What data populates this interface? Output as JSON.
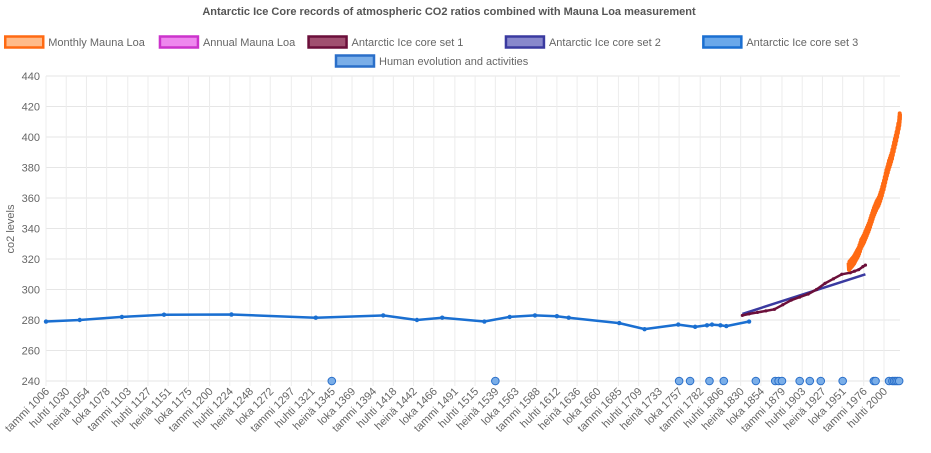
{
  "chart_data": {
    "type": "line",
    "title": "Antarctic Ice Core records of atmospheric CO2 ratios combined with Mauna Loa measurement",
    "ylabel": "co2 levels",
    "xlabel": "",
    "ylim": [
      240,
      440
    ],
    "yticks": [
      240,
      260,
      280,
      300,
      320,
      340,
      360,
      380,
      400,
      420,
      440
    ],
    "xlim": [
      1006,
      2019
    ],
    "grid": true,
    "legend_position": "top",
    "x_tick_years": [
      1006,
      1030,
      1054,
      1078,
      1103,
      1127,
      1151,
      1175,
      1200,
      1224,
      1248,
      1272,
      1297,
      1321,
      1345,
      1369,
      1394,
      1418,
      1442,
      1466,
      1491,
      1515,
      1539,
      1563,
      1588,
      1612,
      1636,
      1660,
      1685,
      1709,
      1733,
      1757,
      1782,
      1806,
      1830,
      1854,
      1879,
      1903,
      1927,
      1951,
      1976,
      2000
    ],
    "x_tick_labels": [
      "tammi 1006",
      "huhti 1030",
      "heinä 1054",
      "loka 1078",
      "tammi 1103",
      "huhti 1127",
      "heinä 1151",
      "loka 1175",
      "tammi 1200",
      "huhti 1224",
      "heinä 1248",
      "loka 1272",
      "tammi 1297",
      "huhti 1321",
      "heinä 1345",
      "loka 1369",
      "tammi 1394",
      "huhti 1418",
      "heinä 1442",
      "loka 1466",
      "tammi 1491",
      "huhti 1515",
      "heinä 1539",
      "loka 1563",
      "tammi 1588",
      "huhti 1612",
      "heinä 1636",
      "loka 1660",
      "tammi 1685",
      "huhti 1709",
      "heinä 1733",
      "loka 1757",
      "tammi 1782",
      "huhti 1806",
      "heinä 1830",
      "loka 1854",
      "tammi 1879",
      "huhti 1903",
      "heinä 1927",
      "loka 1951",
      "tammi 1976",
      "huhti 2000"
    ],
    "series": [
      {
        "name": "Monthly Mauna Loa",
        "color": "#ff6a13",
        "fill": "#ffbb8a",
        "style": "thick-line",
        "x": [
          1958,
          1961,
          1964,
          1967,
          1970,
          1973,
          1976,
          1979,
          1982,
          1985,
          1988,
          1991,
          1994,
          1997,
          2000,
          2003,
          2006,
          2009,
          2012,
          2015,
          2018,
          2019
        ],
        "y": [
          315,
          317,
          319,
          322,
          325,
          330,
          333,
          337,
          341,
          346,
          351,
          355,
          358,
          363,
          369,
          376,
          382,
          387,
          394,
          401,
          409,
          415
        ]
      },
      {
        "name": "Annual Mauna Loa",
        "color": "#cc33cc",
        "fill": "#ee88ee",
        "style": "line",
        "x": [
          1959,
          1970,
          1980,
          1990,
          2000,
          2010,
          2019
        ],
        "y": [
          316,
          325,
          339,
          354,
          369,
          389,
          411
        ]
      },
      {
        "name": "Antarctic Ice core set 1",
        "color": "#6b0f3a",
        "fill": "#a05070",
        "style": "line",
        "x": [
          1832,
          1840,
          1850,
          1860,
          1870,
          1880,
          1890,
          1900,
          1910,
          1920,
          1930,
          1940,
          1950,
          1960,
          1965,
          1970,
          1975,
          1978
        ],
        "y": [
          283,
          284,
          285,
          286,
          287,
          290,
          293,
          295,
          297,
          300,
          304,
          307,
          310,
          311,
          312,
          313,
          315,
          316
        ]
      },
      {
        "name": "Antarctic Ice core set 2",
        "color": "#3a3aa0",
        "fill": "#8888cc",
        "style": "line",
        "x": [
          1832,
          1978
        ],
        "y": [
          284,
          310
        ]
      },
      {
        "name": "Antarctic Ice core set 3",
        "color": "#1a6fd1",
        "fill": "#6aa8ea",
        "style": "line-points",
        "x": [
          1006,
          1046,
          1096,
          1146,
          1226,
          1326,
          1406,
          1446,
          1476,
          1526,
          1556,
          1586,
          1612,
          1626,
          1686,
          1716,
          1756,
          1776,
          1790,
          1796,
          1806,
          1813,
          1840
        ],
        "y": [
          279,
          280,
          282,
          283.5,
          283.6,
          281.5,
          283,
          280,
          281.5,
          279,
          282,
          283,
          282.5,
          281.5,
          278,
          274,
          277,
          275.5,
          276.5,
          277,
          276.5,
          276,
          279
        ]
      },
      {
        "name": "Human evolution and activities",
        "color": "#2a6fc9",
        "fill": "#7aaee8",
        "style": "points",
        "x": [
          1345,
          1539,
          1757,
          1770,
          1793,
          1810,
          1848,
          1871,
          1875,
          1879,
          1900,
          1912,
          1925,
          1951,
          1988,
          1990,
          2006,
          2010,
          2012,
          2014,
          2016,
          2018
        ],
        "y": [
          240,
          240,
          240,
          240,
          240,
          240,
          240,
          240,
          240,
          240,
          240,
          240,
          240,
          240,
          240,
          240,
          240,
          240,
          240,
          240,
          240,
          240
        ]
      }
    ]
  }
}
